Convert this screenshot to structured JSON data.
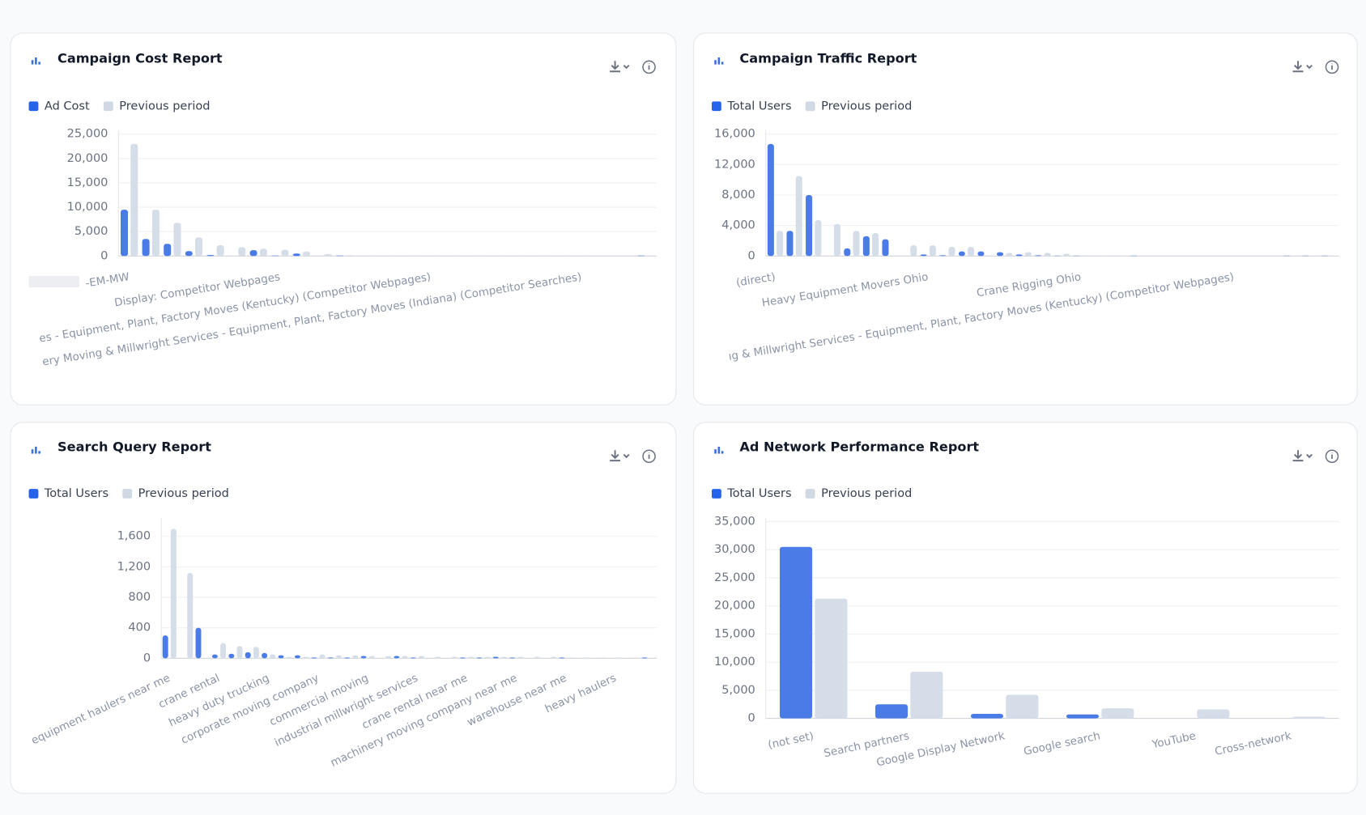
{
  "chart_data": [
    {
      "type": "bar",
      "title": "Campaign Cost Report",
      "categories": [
        "-EM-MW",
        null,
        null,
        null,
        null,
        null,
        null,
        "Display: Competitor Webpages",
        null,
        null,
        null,
        null,
        null,
        null,
        "es - Equipment, Plant, Factory Moves (Kentucky) (Competitor Webpages)",
        null,
        null,
        null,
        null,
        null,
        null,
        "ery Moving & Millwright Services - Equipment, Plant, Factory Moves (Indiana) (Competitor Searches)",
        null,
        null,
        null
      ],
      "series": [
        {
          "name": "Ad Cost",
          "color": "#4a7be6",
          "values": [
            9500,
            3500,
            2500,
            1000,
            200,
            0,
            1200,
            100,
            500,
            0,
            100,
            0,
            0,
            0,
            0,
            0,
            0,
            0,
            0,
            0,
            0,
            0,
            0,
            0,
            100
          ]
        },
        {
          "name": "Previous period",
          "color": "#d5dde8",
          "values": [
            23000,
            9500,
            6800,
            3800,
            2200,
            1800,
            1500,
            1300,
            900,
            400,
            150,
            100,
            100,
            100,
            100,
            100,
            100,
            100,
            100,
            100,
            100,
            100,
            0,
            0,
            0
          ]
        }
      ],
      "ylim": [
        0,
        25000
      ],
      "yticks": [
        0,
        {
          "value": 5000,
          "label": "5,000"
        },
        {
          "value": 10000,
          "label": "10,000"
        },
        {
          "value": 15000,
          "label": "15,000"
        },
        {
          "value": 20000,
          "label": "20,000"
        },
        {
          "value": 25000,
          "label": "25,000"
        }
      ],
      "grid": true
    },
    {
      "type": "bar",
      "title": "Campaign Traffic Report",
      "categories": [
        "(direct)",
        null,
        null,
        null,
        null,
        null,
        null,
        null,
        "Heavy Equipment Movers Ohio",
        null,
        null,
        null,
        null,
        null,
        null,
        null,
        "Crane Rigging Ohio",
        null,
        null,
        null,
        null,
        null,
        null,
        null,
        "ıg & Millwright Services - Equipment, Plant, Factory Moves (Kentucky) (Competitor Webpages)",
        null,
        null,
        null,
        null,
        null
      ],
      "series": [
        {
          "name": "Total Users",
          "color": "#4a7be6",
          "values": [
            14700,
            3300,
            8000,
            0,
            1000,
            2600,
            2200,
            0,
            200,
            100,
            600,
            600,
            500,
            200,
            100,
            50,
            50,
            0,
            0,
            50,
            0,
            0,
            0,
            0,
            0,
            0,
            0,
            50,
            50,
            50
          ]
        },
        {
          "name": "Previous period",
          "color": "#d5dde8",
          "values": [
            3300,
            10500,
            4700,
            4200,
            3300,
            3000,
            0,
            1400,
            1400,
            1200,
            1200,
            0,
            400,
            500,
            400,
            300,
            100,
            50,
            50,
            0,
            0,
            0,
            0,
            0,
            0,
            0,
            0,
            0,
            0,
            0
          ]
        }
      ],
      "ylim": [
        0,
        16000
      ],
      "yticks": [
        0,
        {
          "value": 4000,
          "label": "4,000"
        },
        {
          "value": 8000,
          "label": "8,000"
        },
        {
          "value": 12000,
          "label": "12,000"
        },
        {
          "value": 16000,
          "label": "16,000"
        }
      ],
      "grid": true
    },
    {
      "type": "bar",
      "title": "Search Query Report",
      "categories": [
        "equipment haulers near me",
        null,
        null,
        "crane rental",
        null,
        null,
        "heavy duty trucking",
        null,
        null,
        "corporate moving company",
        null,
        null,
        "commercial moving",
        null,
        null,
        "industrial millwright services",
        null,
        null,
        "crane rental near me",
        null,
        null,
        "machinery moving company near me",
        null,
        null,
        "warehouse near me",
        null,
        null,
        "heavy haulers",
        null,
        null
      ],
      "series": [
        {
          "name": "Total Users",
          "color": "#4a7be6",
          "values": [
            300,
            0,
            400,
            50,
            60,
            80,
            70,
            40,
            40,
            10,
            10,
            10,
            30,
            0,
            30,
            10,
            0,
            0,
            10,
            10,
            20,
            10,
            0,
            0,
            10,
            0,
            0,
            0,
            0,
            10
          ]
        },
        {
          "name": "Previous period",
          "color": "#d5dde8",
          "values": [
            1700,
            1120,
            0,
            200,
            160,
            150,
            50,
            20,
            20,
            50,
            40,
            40,
            30,
            30,
            30,
            30,
            20,
            20,
            20,
            20,
            20,
            20,
            20,
            20,
            10,
            10,
            10,
            10,
            10,
            0
          ]
        }
      ],
      "ylim": [
        0,
        1800
      ],
      "yticks": [
        0,
        400,
        800,
        {
          "value": 1200,
          "label": "1,200"
        },
        {
          "value": 1600,
          "label": "1,600"
        }
      ],
      "grid": true
    },
    {
      "type": "bar",
      "title": "Ad Network Performance Report",
      "categories": [
        "(not set)",
        "Search partners",
        "Google Display Network",
        "Google search",
        "YouTube",
        "Cross-network"
      ],
      "series": [
        {
          "name": "Total Users",
          "color": "#4a7be6",
          "values": [
            30500,
            2500,
            800,
            700,
            0,
            0
          ]
        },
        {
          "name": "Previous period",
          "color": "#d5dde8",
          "values": [
            21300,
            8300,
            4200,
            1800,
            1600,
            300
          ]
        }
      ],
      "ylim": [
        0,
        35000
      ],
      "yticks": [
        0,
        {
          "value": 5000,
          "label": "5,000"
        },
        {
          "value": 10000,
          "label": "10,000"
        },
        {
          "value": 15000,
          "label": "15,000"
        },
        {
          "value": 20000,
          "label": "20,000"
        },
        {
          "value": 25000,
          "label": "25,000"
        },
        {
          "value": 30000,
          "label": "30,000"
        },
        {
          "value": 35000,
          "label": "35,000"
        }
      ],
      "grid": true
    }
  ]
}
